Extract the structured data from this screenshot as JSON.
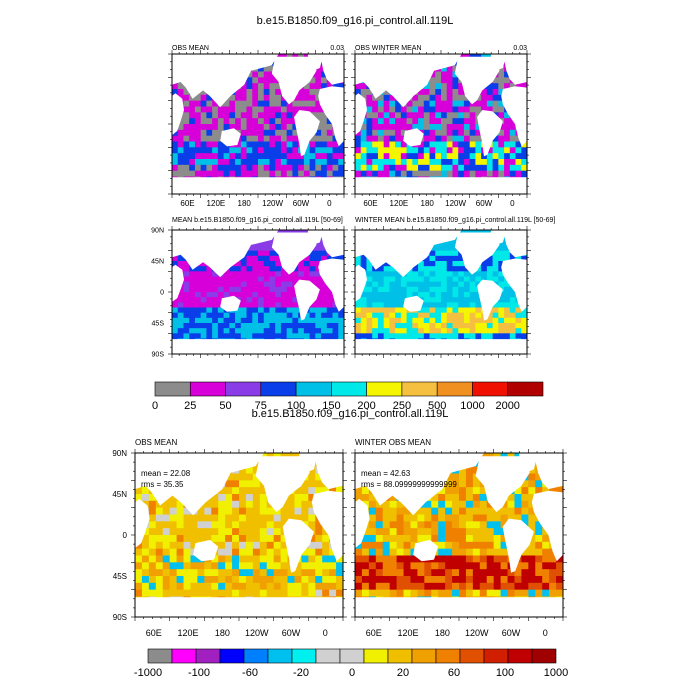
{
  "figure": {
    "title_top": "b.e15.B1850.f09_g16.pi_control.all.119L",
    "title_bottom": "b.e15.B1850.f09_g16.pi_control.all.119L"
  },
  "top_panels": [
    {
      "title_left": "OBS MEAN",
      "title_right": "0.03"
    },
    {
      "title_left": "OBS WINTER MEAN",
      "title_right": "0.03"
    },
    {
      "title_left": "MEAN b.e15.B1850.f09_g16.pi_control.all.119L [50-69]",
      "title_right": ""
    },
    {
      "title_left": "WINTER MEAN b.e15.B1850.f09_g16.pi_control.all.119L [50-69]",
      "title_right": ""
    }
  ],
  "bottom_panels": [
    {
      "title_left": "OBS MEAN",
      "mean_text": "mean = 22.08",
      "rms_text": "rms = 35.35"
    },
    {
      "title_left": "WINTER OBS MEAN",
      "mean_text": "mean = 42.63",
      "rms_text": "rms = 88.09999999999999"
    }
  ],
  "axes": {
    "lon_ticks": [
      "60E",
      "120E",
      "180",
      "120W",
      "60W",
      "0"
    ],
    "lat_ticks": [
      "90N",
      "45N",
      "0",
      "45S",
      "90S"
    ]
  },
  "colorbar_top": {
    "labels": [
      "0",
      "25",
      "50",
      "75",
      "100",
      "150",
      "200",
      "250",
      "500",
      "1000",
      "2000"
    ],
    "colors": [
      "#8c8c8c",
      "#d800d8",
      "#8a3ce6",
      "#0a3ee8",
      "#00c0e8",
      "#00e8e8",
      "#f5f500",
      "#f5c040",
      "#f09020",
      "#f01000",
      "#b00000"
    ]
  },
  "colorbar_bottom": {
    "labels": [
      "-1000",
      "-100",
      "-60",
      "-20",
      "0",
      "20",
      "60",
      "100",
      "1000"
    ],
    "colors": [
      "#8c8c8c",
      "#ff00ff",
      "#a020c0",
      "#0000ff",
      "#0080ff",
      "#00c0f0",
      "#00f0f0",
      "#d0d0d0",
      "#d0d0d0",
      "#f0f000",
      "#f0c000",
      "#f0a000",
      "#f08000",
      "#e05000",
      "#d02000",
      "#c00000",
      "#a00000"
    ]
  },
  "chart_data": [
    {
      "type": "heatmap",
      "title": "OBS MEAN",
      "xlabel": "",
      "ylabel": "",
      "x_ticks": [
        "60E",
        "120E",
        "180",
        "120W",
        "60W",
        "0"
      ],
      "legend_levels": [
        0,
        25,
        50,
        75,
        100,
        150,
        200,
        250,
        500,
        1000,
        2000
      ]
    },
    {
      "type": "heatmap",
      "title": "OBS WINTER MEAN",
      "x_ticks": [
        "60E",
        "120E",
        "180",
        "120W",
        "60W",
        "0"
      ],
      "legend_levels": [
        0,
        25,
        50,
        75,
        100,
        150,
        200,
        250,
        500,
        1000,
        2000
      ]
    },
    {
      "type": "heatmap",
      "title": "MEAN b.e15.B1850.f09_g16.pi_control.all.119L [50-69]",
      "y_ticks": [
        "90N",
        "45N",
        "0",
        "45S",
        "90S"
      ],
      "legend_levels": [
        0,
        25,
        50,
        75,
        100,
        150,
        200,
        250,
        500,
        1000,
        2000
      ]
    },
    {
      "type": "heatmap",
      "title": "WINTER MEAN b.e15.B1850.f09_g16.pi_control.all.119L [50-69]",
      "legend_levels": [
        0,
        25,
        50,
        75,
        100,
        150,
        200,
        250,
        500,
        1000,
        2000
      ]
    },
    {
      "type": "heatmap",
      "title": "OBS MEAN",
      "mean": 22.08,
      "rms": 35.35,
      "x_ticks": [
        "60E",
        "120E",
        "180",
        "120W",
        "60W",
        "0"
      ],
      "y_ticks": [
        "90N",
        "45N",
        "0",
        "45S",
        "90S"
      ],
      "legend_levels": [
        -1000,
        -100,
        -60,
        -20,
        0,
        20,
        60,
        100,
        1000
      ]
    },
    {
      "type": "heatmap",
      "title": "WINTER OBS MEAN",
      "mean": 42.63,
      "rms": 88.1,
      "x_ticks": [
        "60E",
        "120E",
        "180",
        "120W",
        "60W",
        "0"
      ],
      "legend_levels": [
        -1000,
        -100,
        -60,
        -20,
        0,
        20,
        60,
        100,
        1000
      ]
    }
  ]
}
